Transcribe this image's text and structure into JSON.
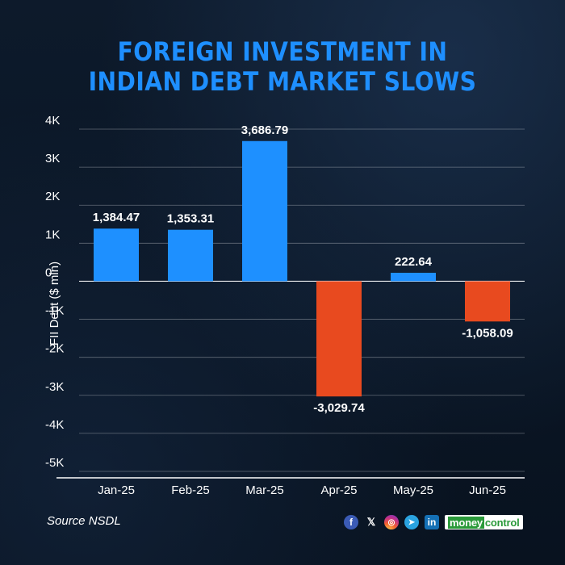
{
  "title": {
    "line1": "FOREIGN INVESTMENT IN",
    "line2": "INDIAN DEBT MARKET SLOWS"
  },
  "source": "Source NSDL",
  "footer": {
    "icons": [
      "facebook-icon",
      "x-icon",
      "instagram-icon",
      "telegram-icon",
      "linkedin-icon"
    ],
    "brand_part1": "money",
    "brand_part2": "control"
  },
  "colors": {
    "positive": "#1e90ff",
    "negative": "#e84a1f",
    "title": "#1e8fff",
    "background": "#0a1422"
  },
  "chart_data": {
    "type": "bar",
    "categories": [
      "Jan-25",
      "Feb-25",
      "Mar-25",
      "Apr-25",
      "May-25",
      "Jun-25"
    ],
    "values": [
      1384.47,
      1353.31,
      3686.79,
      -3029.74,
      222.64,
      -1058.09
    ],
    "data_labels": [
      "1,384.47",
      "1,353.31",
      "3,686.79",
      "-3,029.74",
      "222.64",
      "-1,058.09"
    ],
    "ylabel": "FII Debt ($ mln)",
    "xlabel": "",
    "ylim": [
      -5000,
      4000
    ],
    "yticks": [
      4000,
      3000,
      2000,
      1000,
      0,
      -1000,
      -2000,
      -3000,
      -4000,
      -5000
    ],
    "ytick_labels": [
      "4K",
      "3K",
      "2K",
      "1K",
      "0",
      "-1K",
      "-2K",
      "-3K",
      "-4K",
      "-5K"
    ],
    "grid": true
  }
}
